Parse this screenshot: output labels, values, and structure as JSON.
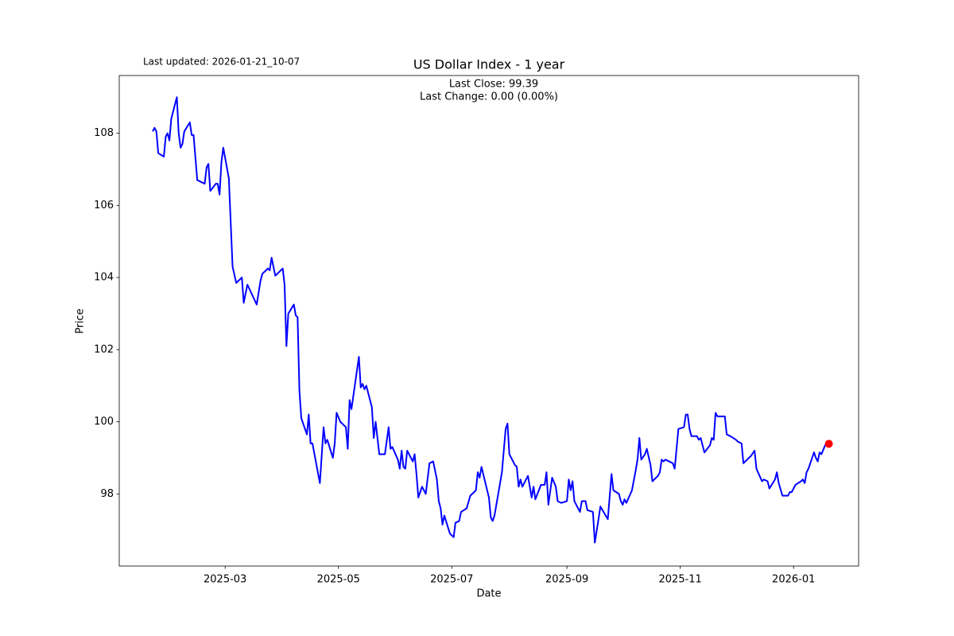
{
  "chart_data": {
    "type": "line",
    "title": "US Dollar Index - 1 year",
    "note": "Last updated: 2026-01-21_10-07",
    "annotations": [
      "Last Close: 99.39",
      "Last Change: 0.00 (0.00%)"
    ],
    "x_label": "Date",
    "y_label": "Price",
    "color": "blue",
    "last_marker_color": "red",
    "xlim": [
      "2025-01-03",
      "2026-02-05"
    ],
    "xticks": [
      {
        "value": "2025-03-01",
        "label": "2025-03"
      },
      {
        "value": "2025-05-01",
        "label": "2025-05"
      },
      {
        "value": "2025-07-01",
        "label": "2025-07"
      },
      {
        "value": "2025-09-01",
        "label": "2025-09"
      },
      {
        "value": "2025-11-01",
        "label": "2025-11"
      },
      {
        "value": "2026-01-01",
        "label": "2026-01"
      }
    ],
    "ylim": [
      96.0,
      109.6
    ],
    "yticks": [
      98,
      100,
      102,
      104,
      106,
      108
    ],
    "grid": false,
    "x": [
      "2025-01-21",
      "2025-01-22",
      "2025-01-23",
      "2025-01-24",
      "2025-01-27",
      "2025-01-28",
      "2025-01-29",
      "2025-01-30",
      "2025-01-31",
      "2025-02-03",
      "2025-02-04",
      "2025-02-05",
      "2025-02-06",
      "2025-02-07",
      "2025-02-10",
      "2025-02-11",
      "2025-02-12",
      "2025-02-14",
      "2025-02-18",
      "2025-02-19",
      "2025-02-20",
      "2025-02-21",
      "2025-02-24",
      "2025-02-25",
      "2025-02-26",
      "2025-02-27",
      "2025-02-28",
      "2025-03-03",
      "2025-03-05",
      "2025-03-07",
      "2025-03-10",
      "2025-03-11",
      "2025-03-13",
      "2025-03-18",
      "2025-03-20",
      "2025-03-21",
      "2025-03-24",
      "2025-03-25",
      "2025-03-26",
      "2025-03-28",
      "2025-04-01",
      "2025-04-02",
      "2025-04-03",
      "2025-04-04",
      "2025-04-07",
      "2025-04-08",
      "2025-04-09",
      "2025-04-10",
      "2025-04-11",
      "2025-04-14",
      "2025-04-15",
      "2025-04-16",
      "2025-04-17",
      "2025-04-21",
      "2025-04-23",
      "2025-04-24",
      "2025-04-25",
      "2025-04-28",
      "2025-04-29",
      "2025-04-30",
      "2025-05-02",
      "2025-05-05",
      "2025-05-06",
      "2025-05-07",
      "2025-05-08",
      "2025-05-12",
      "2025-05-13",
      "2025-05-14",
      "2025-05-15",
      "2025-05-16",
      "2025-05-19",
      "2025-05-20",
      "2025-05-21",
      "2025-05-23",
      "2025-05-26",
      "2025-05-28",
      "2025-05-29",
      "2025-05-30",
      "2025-06-02",
      "2025-06-03",
      "2025-06-04",
      "2025-06-05",
      "2025-06-06",
      "2025-06-07",
      "2025-06-09",
      "2025-06-10",
      "2025-06-11",
      "2025-06-12",
      "2025-06-13",
      "2025-06-15",
      "2025-06-17",
      "2025-06-19",
      "2025-06-21",
      "2025-06-23",
      "2025-06-24",
      "2025-06-25",
      "2025-06-26",
      "2025-06-27",
      "2025-06-30",
      "2025-07-02",
      "2025-07-03",
      "2025-07-05",
      "2025-07-06",
      "2025-07-09",
      "2025-07-11",
      "2025-07-14",
      "2025-07-15",
      "2025-07-16",
      "2025-07-17",
      "2025-07-21",
      "2025-07-22",
      "2025-07-23",
      "2025-07-24",
      "2025-07-28",
      "2025-07-30",
      "2025-07-31",
      "2025-08-01",
      "2025-08-04",
      "2025-08-05",
      "2025-08-06",
      "2025-08-07",
      "2025-08-08",
      "2025-08-11",
      "2025-08-13",
      "2025-08-14",
      "2025-08-15",
      "2025-08-18",
      "2025-08-20",
      "2025-08-21",
      "2025-08-22",
      "2025-08-24",
      "2025-08-26",
      "2025-08-27",
      "2025-08-29",
      "2025-09-01",
      "2025-09-02",
      "2025-09-03",
      "2025-09-04",
      "2025-09-05",
      "2025-09-08",
      "2025-09-09",
      "2025-09-11",
      "2025-09-12",
      "2025-09-15",
      "2025-09-16",
      "2025-09-18",
      "2025-09-19",
      "2025-09-23",
      "2025-09-25",
      "2025-09-26",
      "2025-09-29",
      "2025-09-30",
      "2025-10-01",
      "2025-10-02",
      "2025-10-03",
      "2025-10-06",
      "2025-10-08",
      "2025-10-09",
      "2025-10-10",
      "2025-10-11",
      "2025-10-13",
      "2025-10-14",
      "2025-10-16",
      "2025-10-17",
      "2025-10-20",
      "2025-10-21",
      "2025-10-22",
      "2025-10-23",
      "2025-10-24",
      "2025-10-28",
      "2025-10-29",
      "2025-10-30",
      "2025-10-31",
      "2025-11-03",
      "2025-11-04",
      "2025-11-05",
      "2025-11-06",
      "2025-11-07",
      "2025-11-10",
      "2025-11-11",
      "2025-11-12",
      "2025-11-14",
      "2025-11-17",
      "2025-11-18",
      "2025-11-19",
      "2025-11-20",
      "2025-11-21",
      "2025-11-25",
      "2025-11-26",
      "2025-11-28",
      "2025-12-01",
      "2025-12-02",
      "2025-12-04",
      "2025-12-05",
      "2025-12-08",
      "2025-12-09",
      "2025-12-11",
      "2025-12-12",
      "2025-12-15",
      "2025-12-16",
      "2025-12-18",
      "2025-12-19",
      "2025-12-22",
      "2025-12-23",
      "2025-12-24",
      "2025-12-26",
      "2025-12-29",
      "2025-12-30",
      "2025-12-31",
      "2026-01-02",
      "2026-01-05",
      "2026-01-06",
      "2026-01-07",
      "2026-01-08",
      "2026-01-09",
      "2026-01-12",
      "2026-01-13",
      "2026-01-14",
      "2026-01-15",
      "2026-01-16",
      "2026-01-18",
      "2026-01-19",
      "2026-01-20"
    ],
    "values": [
      108.05,
      108.15,
      108.05,
      107.45,
      107.35,
      107.9,
      108.0,
      107.8,
      108.4,
      109.0,
      108.0,
      107.6,
      107.7,
      108.05,
      108.3,
      107.95,
      107.95,
      106.7,
      106.6,
      107.05,
      107.15,
      106.4,
      106.6,
      106.6,
      106.3,
      107.2,
      107.6,
      106.75,
      104.3,
      103.85,
      104.0,
      103.3,
      103.8,
      103.25,
      103.9,
      104.1,
      104.25,
      104.2,
      104.55,
      104.05,
      104.25,
      103.8,
      102.1,
      103.0,
      103.25,
      102.95,
      102.9,
      100.85,
      100.1,
      99.65,
      100.2,
      99.4,
      99.4,
      98.3,
      99.85,
      99.4,
      99.5,
      99.0,
      99.4,
      100.25,
      100.0,
      99.85,
      99.25,
      100.6,
      100.35,
      101.8,
      100.95,
      101.05,
      100.9,
      101.0,
      100.4,
      99.55,
      100.0,
      99.1,
      99.1,
      99.85,
      99.25,
      99.3,
      98.95,
      98.7,
      99.2,
      98.75,
      98.7,
      99.2,
      99.0,
      98.9,
      99.1,
      98.55,
      97.9,
      98.2,
      98.0,
      98.85,
      98.9,
      98.4,
      97.8,
      97.6,
      97.15,
      97.4,
      96.9,
      96.8,
      97.2,
      97.25,
      97.5,
      97.6,
      97.95,
      98.1,
      98.6,
      98.45,
      98.75,
      97.9,
      97.35,
      97.25,
      97.4,
      98.6,
      99.8,
      99.95,
      99.1,
      98.8,
      98.75,
      98.2,
      98.4,
      98.2,
      98.5,
      97.9,
      98.2,
      97.85,
      98.25,
      98.25,
      98.6,
      97.7,
      98.45,
      98.2,
      97.8,
      97.75,
      97.8,
      98.4,
      98.1,
      98.35,
      97.8,
      97.5,
      97.8,
      97.8,
      97.55,
      97.5,
      96.65,
      97.3,
      97.65,
      97.3,
      98.55,
      98.1,
      98.0,
      97.8,
      97.7,
      97.85,
      97.75,
      98.1,
      98.65,
      98.95,
      99.55,
      98.95,
      99.1,
      99.25,
      98.8,
      98.35,
      98.5,
      98.6,
      98.95,
      98.9,
      98.95,
      98.85,
      98.7,
      99.25,
      99.8,
      99.85,
      100.2,
      100.2,
      99.8,
      99.6,
      99.6,
      99.5,
      99.55,
      99.15,
      99.35,
      99.55,
      99.5,
      100.25,
      100.15,
      100.15,
      99.65,
      99.6,
      99.5,
      99.45,
      99.4,
      98.85,
      99.0,
      99.05,
      99.2,
      98.7,
      98.35,
      98.4,
      98.35,
      98.15,
      98.4,
      98.6,
      98.3,
      97.95,
      97.95,
      98.05,
      98.05,
      98.25,
      98.35,
      98.4,
      98.3,
      98.6,
      98.7,
      99.15,
      99.0,
      98.9,
      99.15,
      99.1,
      99.35,
      99.4,
      99.39
    ]
  }
}
